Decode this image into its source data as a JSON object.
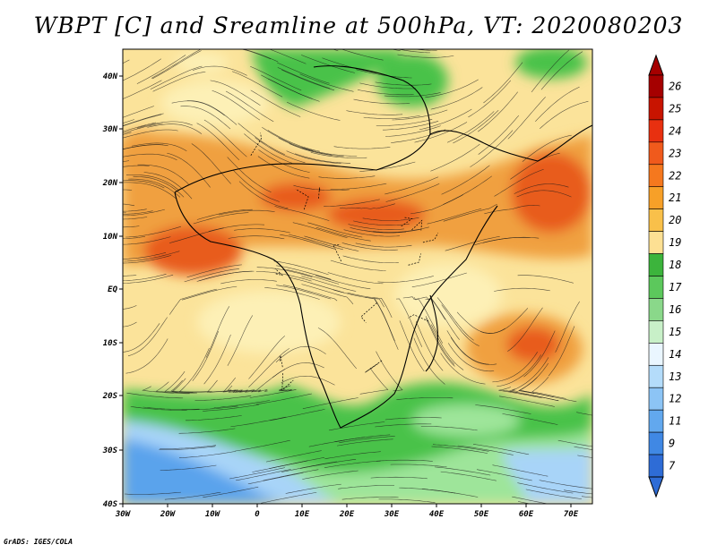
{
  "title": "WBPT [C] and Sreamline at 500hPa, VT: 2020080203",
  "credit": "GrADS: IGES/COLA",
  "map": {
    "variable": "WBPT [C]",
    "overlay": "streamlines",
    "level": "500hPa",
    "valid_time": "2020080203",
    "lon_labels": [
      "30W",
      "20W",
      "10W",
      "0",
      "10E",
      "20E",
      "30E",
      "40E",
      "50E",
      "60E",
      "70E"
    ],
    "lat_labels": [
      "40N",
      "30N",
      "20N",
      "10N",
      "EQ",
      "10S",
      "20S",
      "30S",
      "40S"
    ],
    "colors": {
      "bg_yellow": "#fbe39a",
      "light_yellow": "#fdf0b6",
      "orange": "#f0a040",
      "red_orange": "#e85c1e",
      "green": "#48c248",
      "light_green": "#9ee59a",
      "blue": "#5aa3ec",
      "light_blue": "#a8d4f8"
    }
  },
  "colorbar": {
    "labels": [
      "26",
      "25",
      "24",
      "23",
      "22",
      "21",
      "20",
      "19",
      "18",
      "17",
      "16",
      "15",
      "14",
      "13",
      "12",
      "11",
      "9",
      "7"
    ],
    "colors": [
      "#a50000",
      "#c81400",
      "#e83010",
      "#f05a1c",
      "#f5781e",
      "#f7a028",
      "#f9c04a",
      "#fde093",
      "#3cb43c",
      "#5cc85c",
      "#8ad88a",
      "#c8f0c8",
      "#eaf6ff",
      "#b4dcfa",
      "#8cc4f5",
      "#62a8ee",
      "#4088e4",
      "#2e6cd6"
    ]
  }
}
